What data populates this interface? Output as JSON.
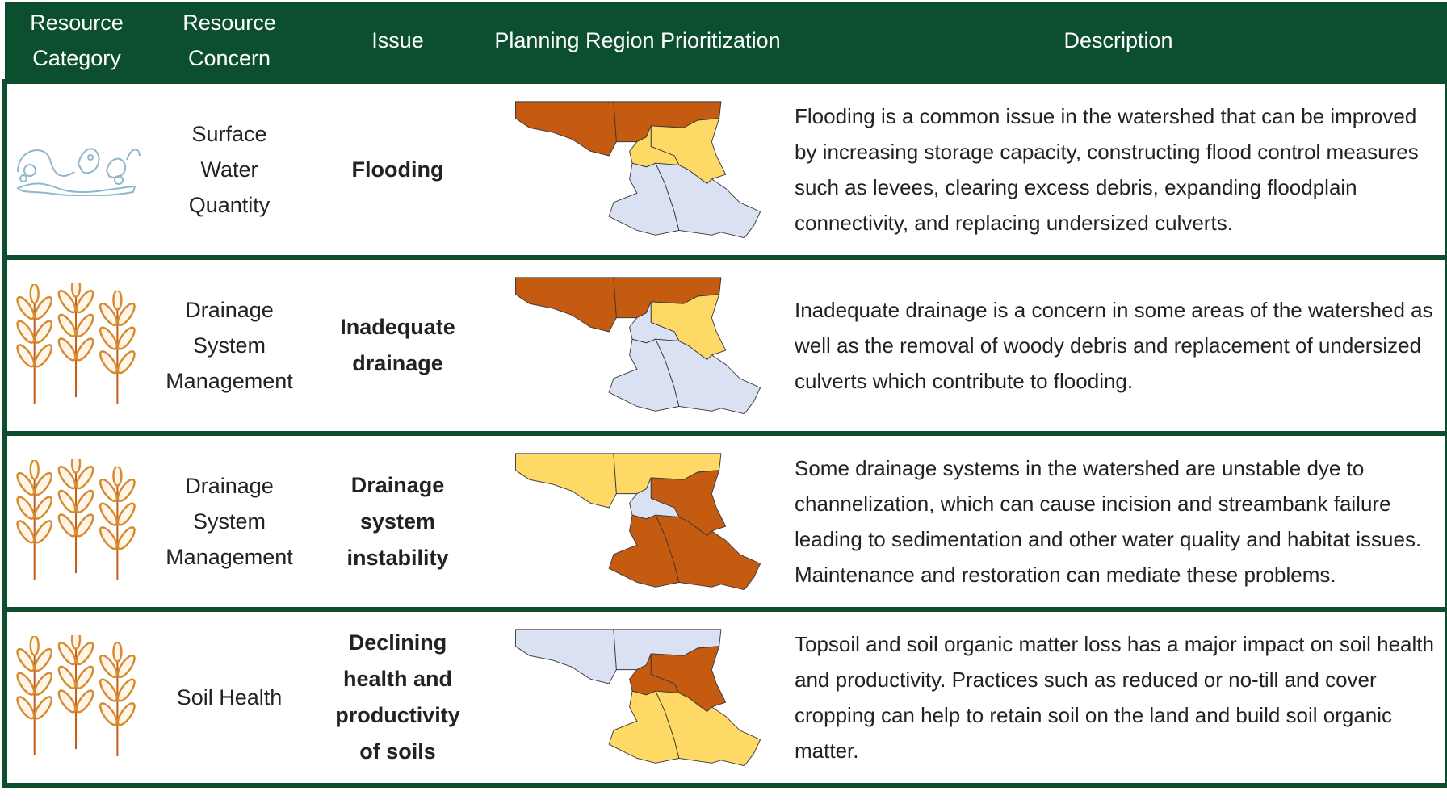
{
  "header": {
    "columns": [
      "Resource Category",
      "Resource Concern",
      "Issue",
      "Planning Region Prioritization",
      "Description"
    ]
  },
  "rows": [
    {
      "icon": "water",
      "concern": "Surface Water Quantity",
      "issue": "Flooding",
      "region_colors": [
        "#c55a11",
        "#c55a11",
        "#ffd966",
        "#ffd966",
        "#d9e1f2",
        "#d9e1f2"
      ],
      "description": "Flooding is a common issue in the watershed that can be improved by increasing storage capacity, constructing flood control measures such as levees, clearing excess debris, expanding floodplain connectivity, and replacing undersized culverts."
    },
    {
      "icon": "wheat",
      "concern": "Drainage System Management",
      "issue": "Inadequate drainage",
      "region_colors": [
        "#c55a11",
        "#c55a11",
        "#ffd966",
        "#d9e1f2",
        "#d9e1f2",
        "#d9e1f2"
      ],
      "description": "Inadequate drainage is a concern in some areas of the watershed as well as the removal of woody debris and replacement of undersized culverts which contribute to flooding."
    },
    {
      "icon": "wheat",
      "concern": "Drainage System Management",
      "issue": "Drainage system instability",
      "region_colors": [
        "#ffd966",
        "#ffd966",
        "#c55a11",
        "#d9e1f2",
        "#c55a11",
        "#c55a11"
      ],
      "description": "Some drainage systems in the watershed are unstable dye to channelization, which can cause incision and streambank failure leading to sedimentation and other water quality and habitat issues. Maintenance and restoration can mediate these problems."
    },
    {
      "icon": "wheat",
      "concern": "Soil Health",
      "issue": "Declining health and productivity of soils",
      "region_colors": [
        "#d9e1f2",
        "#d9e1f2",
        "#c55a11",
        "#c55a11",
        "#ffd966",
        "#ffd966"
      ],
      "description": "Topsoil and soil organic matter loss has a major impact on soil health and productivity. Practices such as reduced or no-till and cover cropping can help to retain soil on the land and build soil organic matter."
    }
  ]
}
